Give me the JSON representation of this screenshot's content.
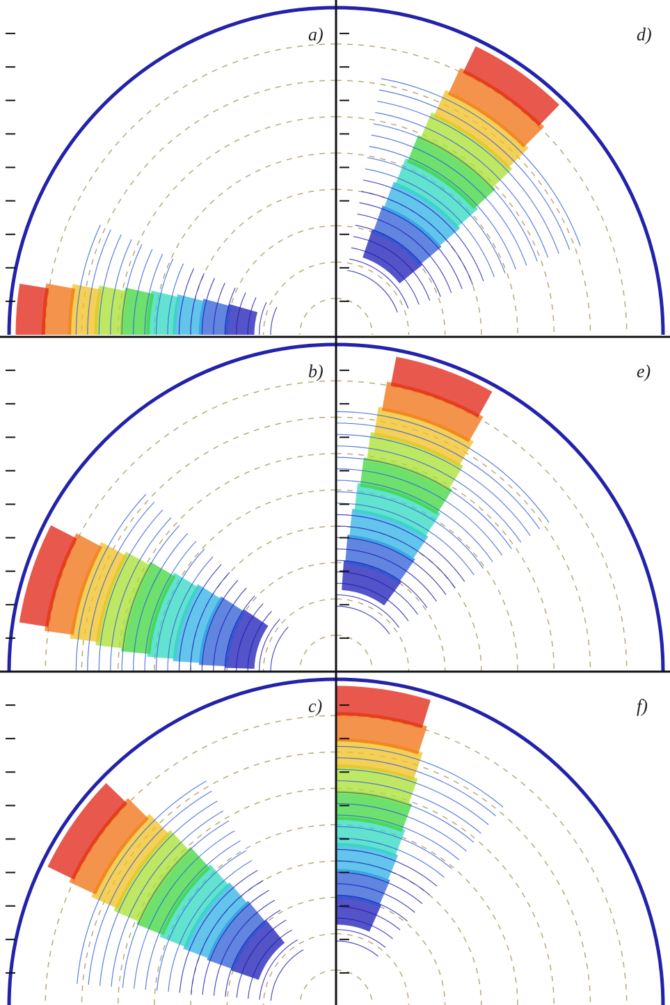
{
  "figure": {
    "panels": [
      {
        "id": "a",
        "label": "a)",
        "side": "left",
        "row": 0,
        "front_angle": 0,
        "inner_angle": 0
      },
      {
        "id": "d",
        "label": "d)",
        "side": "right",
        "row": 0,
        "front_angle": 55,
        "inner_angle": 40
      },
      {
        "id": "b",
        "label": "b)",
        "side": "left",
        "row": 1,
        "front_angle": 18,
        "inner_angle": 10
      },
      {
        "id": "e",
        "label": "e)",
        "side": "right",
        "row": 1,
        "front_angle": 70,
        "inner_angle": 55
      },
      {
        "id": "c",
        "label": "c)",
        "side": "left",
        "row": 2,
        "front_angle": 35,
        "inner_angle": 25
      },
      {
        "id": "f",
        "label": "f)",
        "side": "right",
        "row": 2,
        "front_angle": 82,
        "inner_angle": 70
      }
    ],
    "colors": {
      "axis": "#111111",
      "shock": "#2222aa",
      "dashed_arcs": "#b8a878",
      "contour_palette": [
        "#1b1bb5",
        "#2e5cd6",
        "#2fb0e6",
        "#30d8c0",
        "#3cd63c",
        "#a8e030",
        "#f0c020",
        "#f07010",
        "#e02010"
      ]
    }
  }
}
